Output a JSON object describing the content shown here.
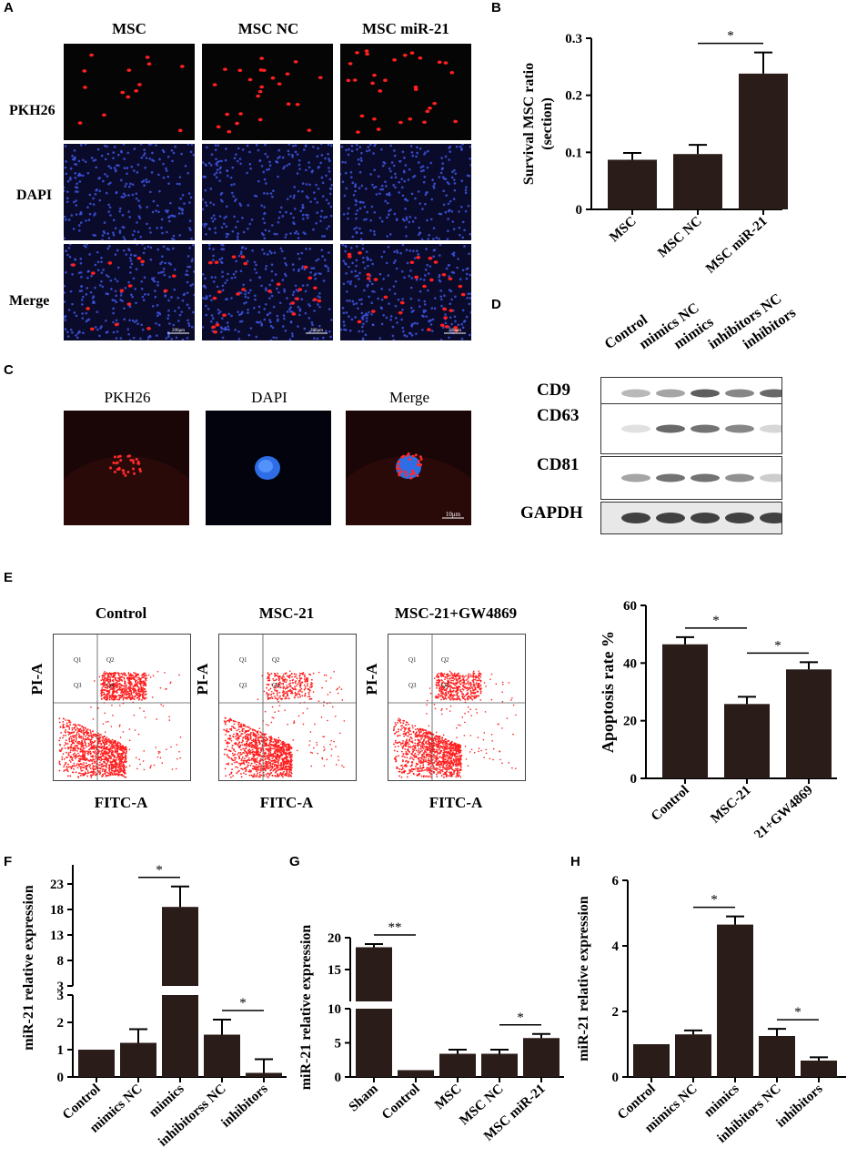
{
  "panels": {
    "A": {
      "label": "A",
      "columns": [
        "MSC",
        "MSC NC",
        "MSC miR-21"
      ],
      "rows": [
        "PKH26",
        "DAPI",
        "Merge"
      ],
      "scale_bar": "200μm"
    },
    "B": {
      "label": "B"
    },
    "C": {
      "label": "C",
      "columns": [
        "PKH26",
        "DAPI",
        "Merge"
      ],
      "scale_bar": "10μm"
    },
    "D": {
      "label": "D",
      "lanes": [
        "Control",
        "mimics NC",
        "mimics",
        "inhibitors NC",
        "inhibitors"
      ],
      "blots": [
        {
          "name": "CD9",
          "intensity": [
            0.35,
            0.45,
            0.8,
            0.6,
            0.75
          ]
        },
        {
          "name": "CD63",
          "intensity": [
            0.15,
            0.75,
            0.7,
            0.6,
            0.2
          ]
        },
        {
          "name": "CD81",
          "intensity": [
            0.45,
            0.7,
            0.7,
            0.55,
            0.25
          ]
        },
        {
          "name": "GAPDH",
          "intensity": [
            0.95,
            0.95,
            0.95,
            0.95,
            0.95
          ]
        }
      ]
    },
    "E": {
      "label": "E",
      "plots": [
        {
          "title": "Control",
          "xlabel": "FITC-A",
          "ylabel": "PI-A"
        },
        {
          "title": "MSC-21",
          "xlabel": "FITC-A",
          "ylabel": "PI-A"
        },
        {
          "title": "MSC-21+GW4869",
          "xlabel": "FITC-A",
          "ylabel": "PI-A"
        }
      ],
      "quadrants": [
        "Q1",
        "Q2",
        "Q3",
        "Q4"
      ]
    },
    "F": {
      "label": "F"
    },
    "G": {
      "label": "G"
    },
    "H": {
      "label": "H"
    }
  },
  "chart_data": [
    {
      "id": "B",
      "type": "bar",
      "categories": [
        "MSC",
        "MSC NC",
        "MSC miR-21"
      ],
      "values": [
        0.087,
        0.097,
        0.238
      ],
      "errors": [
        0.012,
        0.016,
        0.037
      ],
      "ylabel": "Survival MSC ratio\n(section)",
      "ylim": [
        0,
        0.3
      ],
      "yticks": [
        "0",
        "0.1",
        "0.2",
        "0.3"
      ],
      "significance": [
        {
          "from": 1,
          "to": 2,
          "label": "*"
        }
      ]
    },
    {
      "id": "E",
      "type": "bar",
      "categories": [
        "Control",
        "MSC-21",
        "MSC-21+GW4869"
      ],
      "values": [
        46.5,
        25.8,
        37.8
      ],
      "errors": [
        2.5,
        2.5,
        2.5
      ],
      "ylabel": "Apoptosis rate %",
      "ylim": [
        0,
        60
      ],
      "yticks": [
        "0",
        "20",
        "40",
        "60"
      ],
      "significance": [
        {
          "from": 0,
          "to": 1,
          "label": "*"
        },
        {
          "from": 1,
          "to": 2,
          "label": "*"
        }
      ]
    },
    {
      "id": "F",
      "type": "bar",
      "broken_axis": true,
      "categories": [
        "Control",
        "mimics NC",
        "mimics",
        "inhibitorss NC",
        "inhibitors"
      ],
      "values": [
        1.0,
        1.25,
        18.5,
        1.55,
        0.15
      ],
      "errors": [
        0,
        0.5,
        4.0,
        0.55,
        0.5
      ],
      "ylabel": "miR-21 relative expression",
      "lower_ylim": [
        0,
        3
      ],
      "lower_yticks": [
        "0",
        "1",
        "2",
        "3"
      ],
      "upper_ylim": [
        3,
        28
      ],
      "upper_yticks": [
        "3",
        "8",
        "13",
        "18",
        "23",
        "28"
      ],
      "significance": [
        {
          "from": 1,
          "to": 2,
          "label": "*"
        },
        {
          "from": 3,
          "to": 4,
          "label": "*"
        }
      ]
    },
    {
      "id": "G",
      "type": "bar",
      "broken_axis": true,
      "categories": [
        "Sham",
        "Control",
        "MSC",
        "MSC NC",
        "MSC miR-21"
      ],
      "values": [
        18.5,
        1.0,
        3.4,
        3.4,
        5.7
      ],
      "errors": [
        0.5,
        0,
        0.6,
        0.6,
        0.6
      ],
      "ylabel": "miR-21 relative expression",
      "lower_ylim": [
        0,
        10
      ],
      "lower_yticks": [
        "0",
        "5",
        "10"
      ],
      "upper_ylim": [
        10,
        20
      ],
      "upper_yticks": [
        "15",
        "20"
      ],
      "significance": [
        {
          "from": 0,
          "to": 1,
          "label": "**"
        },
        {
          "from": 3,
          "to": 4,
          "label": "*"
        }
      ]
    },
    {
      "id": "H",
      "type": "bar",
      "categories": [
        "Control",
        "mimics NC",
        "mimics",
        "inhibitors NC",
        "inhibitors"
      ],
      "values": [
        1.0,
        1.3,
        4.65,
        1.25,
        0.5
      ],
      "errors": [
        0,
        0.12,
        0.25,
        0.22,
        0.1
      ],
      "ylabel": "miR-21 relative expression",
      "ylim": [
        0,
        6
      ],
      "yticks": [
        "0",
        "2",
        "4",
        "6"
      ],
      "significance": [
        {
          "from": 1,
          "to": 2,
          "label": "*"
        },
        {
          "from": 3,
          "to": 4,
          "label": "*"
        }
      ]
    }
  ]
}
